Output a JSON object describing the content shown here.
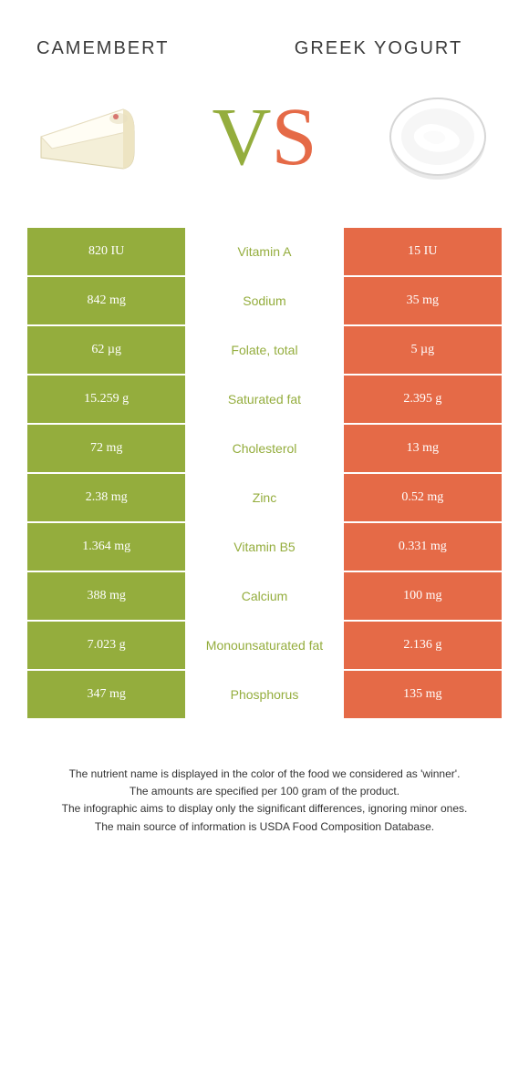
{
  "colors": {
    "green": "#94ad3d",
    "orange": "#e56a47",
    "text": "#3b3b3b",
    "white": "#ffffff"
  },
  "left": {
    "title": "Camembert"
  },
  "right": {
    "title": "Greek Yogurt"
  },
  "vs": {
    "v": "V",
    "s": "S"
  },
  "rows": [
    {
      "left_val": "820 IU",
      "label": "Vitamin A",
      "right_val": "15 IU",
      "winner": "left"
    },
    {
      "left_val": "842 mg",
      "label": "Sodium",
      "right_val": "35 mg",
      "winner": "left"
    },
    {
      "left_val": "62 µg",
      "label": "Folate, total",
      "right_val": "5 µg",
      "winner": "left"
    },
    {
      "left_val": "15.259 g",
      "label": "Saturated fat",
      "right_val": "2.395 g",
      "winner": "left"
    },
    {
      "left_val": "72 mg",
      "label": "Cholesterol",
      "right_val": "13 mg",
      "winner": "left"
    },
    {
      "left_val": "2.38 mg",
      "label": "Zinc",
      "right_val": "0.52 mg",
      "winner": "left"
    },
    {
      "left_val": "1.364 mg",
      "label": "Vitamin B5",
      "right_val": "0.331 mg",
      "winner": "left"
    },
    {
      "left_val": "388 mg",
      "label": "Calcium",
      "right_val": "100 mg",
      "winner": "left"
    },
    {
      "left_val": "7.023 g",
      "label": "Monounsaturated fat",
      "right_val": "2.136 g",
      "winner": "left"
    },
    {
      "left_val": "347 mg",
      "label": "Phosphorus",
      "right_val": "135 mg",
      "winner": "left"
    }
  ],
  "footer": {
    "line1": "The nutrient name is displayed in the color of the food we considered as 'winner'.",
    "line2": "The amounts are specified per 100 gram of the product.",
    "line3": "The infographic aims to display only the significant differences, ignoring minor ones.",
    "line4": "The main source of information is USDA Food Composition Database."
  }
}
